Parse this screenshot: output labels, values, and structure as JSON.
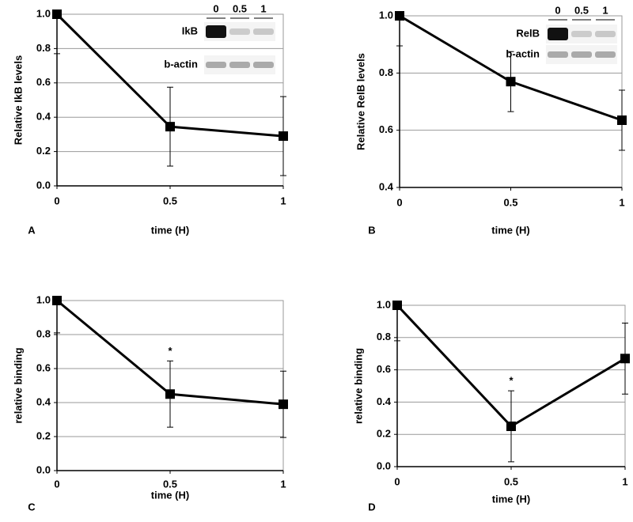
{
  "chart_data": [
    {
      "type": "line",
      "panel": "A",
      "x_label": "time (H)",
      "y_label": "Relative IkB levels",
      "x": [
        0,
        0.5,
        1
      ],
      "values": [
        1.0,
        0.345,
        0.29
      ],
      "errors": [
        0.23,
        0.23,
        0.23
      ],
      "color": "#000000",
      "grid": true,
      "xlim": [
        0,
        1
      ],
      "xticks": [
        0,
        0.5,
        1
      ],
      "ylim": [
        0,
        1
      ],
      "yticks": [
        {
          "value": 0,
          "label": "0.0"
        },
        {
          "value": 0.2,
          "label": "0.2"
        },
        {
          "value": 0.4,
          "label": "0.4"
        },
        {
          "value": 0.6,
          "label": "0.6"
        },
        {
          "value": 0.8,
          "label": "0.8"
        },
        {
          "value": 1,
          "label": "1.0"
        }
      ],
      "inset": {
        "lanes": [
          "0",
          "0.5",
          "1"
        ],
        "rows": [
          "IkB",
          "b-actin"
        ]
      }
    },
    {
      "type": "line",
      "panel": "B",
      "x_label": "time (H)",
      "y_label": "Relative RelB levels",
      "x": [
        0,
        0.5,
        1
      ],
      "values": [
        1.0,
        0.77,
        0.635
      ],
      "errors": [
        0.105,
        0.105,
        0.105
      ],
      "color": "#000000",
      "grid": true,
      "xlim": [
        0,
        1
      ],
      "xticks": [
        0,
        0.5,
        1
      ],
      "ylim": [
        0.4,
        1
      ],
      "yticks": [
        0.4,
        0.6,
        0.8,
        {
          "value": 1,
          "label": "1.0"
        }
      ],
      "inset": {
        "lanes": [
          "0",
          "0.5",
          "1"
        ],
        "rows": [
          "RelB",
          "b-actin"
        ]
      }
    },
    {
      "type": "line",
      "panel": "C",
      "x_label": "time (H)",
      "y_label": "relative binding",
      "x": [
        0,
        0.5,
        1
      ],
      "values": [
        1.0,
        0.45,
        0.39
      ],
      "errors": [
        0.19,
        0.195,
        0.195
      ],
      "color": "#000000",
      "grid": true,
      "xlim": [
        0,
        1
      ],
      "xticks": [
        0,
        0.5,
        1
      ],
      "ylim": [
        0,
        1
      ],
      "yticks": [
        {
          "value": 0,
          "label": "0.0"
        },
        {
          "value": 0.2,
          "label": "0.2"
        },
        {
          "value": 0.4,
          "label": "0.4"
        },
        {
          "value": 0.6,
          "label": "0.6"
        },
        {
          "value": 0.8,
          "label": "0.8"
        },
        {
          "value": 1,
          "label": "1.0"
        }
      ],
      "annotations": [
        {
          "text": "*",
          "x": 0.5
        }
      ]
    },
    {
      "type": "line",
      "panel": "D",
      "x_label": "time (H)",
      "y_label": "relative binding",
      "x": [
        0,
        0.5,
        1
      ],
      "values": [
        1.0,
        0.25,
        0.67
      ],
      "errors": [
        0.22,
        0.22,
        0.22
      ],
      "color": "#000000",
      "grid": true,
      "xlim": [
        0,
        1
      ],
      "xticks": [
        0,
        0.5,
        1
      ],
      "ylim": [
        0,
        1
      ],
      "yticks": [
        {
          "value": 0,
          "label": "0.0"
        },
        {
          "value": 0.2,
          "label": "0.2"
        },
        {
          "value": 0.4,
          "label": "0.4"
        },
        {
          "value": 0.6,
          "label": "0.6"
        },
        {
          "value": 0.8,
          "label": "0.8"
        },
        {
          "value": 1,
          "label": "1.0"
        }
      ],
      "annotations": [
        {
          "text": "*",
          "x": 0.5
        }
      ]
    }
  ]
}
